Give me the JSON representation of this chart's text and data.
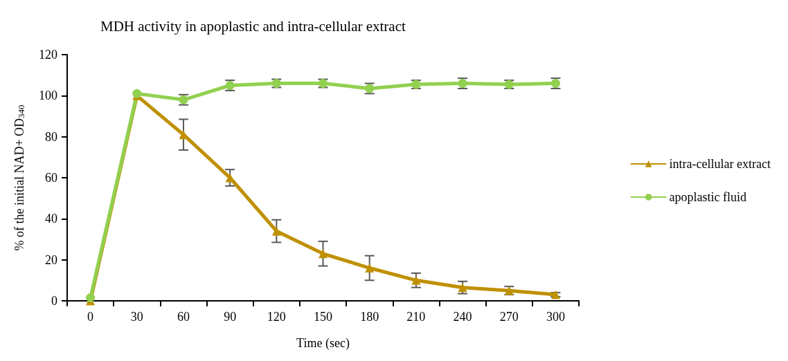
{
  "chart_data": {
    "type": "line",
    "title": "MDH activity in apoplastic and intra-cellular extract",
    "xlabel": "Time (sec)",
    "ylabel": "% of the initial NAD+ OD$_{340}$",
    "categories": [
      "0",
      "30",
      "60",
      "90",
      "120",
      "150",
      "180",
      "210",
      "240",
      "270",
      "300"
    ],
    "series": [
      {
        "name": "intra-cellular extract",
        "color": "#bf9000",
        "marker": "triangle",
        "values": [
          0,
          100,
          81,
          60,
          34,
          23,
          16,
          10,
          6.5,
          5,
          3
        ],
        "errors": [
          null,
          null,
          7.5,
          4,
          5.5,
          6,
          6,
          3.5,
          3,
          2,
          1
        ]
      },
      {
        "name": "apoplastic fluid",
        "color": "#92d050",
        "marker": "circle",
        "values": [
          1.5,
          101,
          98,
          105,
          106,
          106,
          103.5,
          105.5,
          106,
          105.5,
          106
        ],
        "errors": [
          null,
          null,
          2.5,
          2.5,
          2,
          2,
          2.5,
          2,
          2.5,
          2,
          2.5
        ]
      }
    ],
    "ylim": [
      0,
      120
    ],
    "yticks": [
      0,
      20,
      40,
      60,
      80,
      100,
      120
    ],
    "legend": "right"
  }
}
